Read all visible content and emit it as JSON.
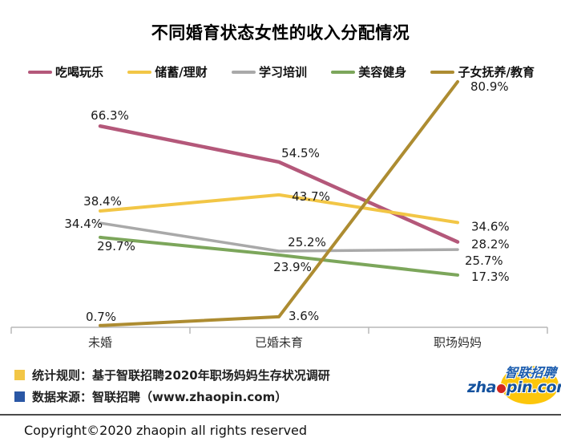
{
  "title": "不同婚育状态女性的收入分配情况",
  "chart_data": {
    "type": "line",
    "title": "不同婚育状态女性的收入分配情况",
    "categories": [
      "未婚",
      "已婚未育",
      "职场妈妈"
    ],
    "series": [
      {
        "name": "吃喝玩乐",
        "color": "#b4587a",
        "values": [
          66.3,
          54.5,
          28.2
        ],
        "labels": [
          "66.3%",
          "54.5%",
          "28.2%"
        ]
      },
      {
        "name": "储蓄/理财",
        "color": "#f2c646",
        "values": [
          38.4,
          43.7,
          34.6
        ],
        "labels": [
          "38.4%",
          "43.7%",
          "34.6%"
        ]
      },
      {
        "name": "学习培训",
        "color": "#a9a9a9",
        "values": [
          34.4,
          25.2,
          25.7
        ],
        "labels": [
          "34.4%",
          "25.2%",
          "25.7%"
        ]
      },
      {
        "name": "美容健身",
        "color": "#7ca65b",
        "values": [
          29.7,
          23.9,
          17.3
        ],
        "labels": [
          "29.7%",
          "23.9%",
          "17.3%"
        ]
      },
      {
        "name": "子女抚养/教育",
        "color": "#ad8c31",
        "values": [
          0.7,
          3.6,
          80.9
        ],
        "labels": [
          "0.7%",
          "3.6%",
          "80.9%"
        ]
      }
    ],
    "value_suffix": "%",
    "ylim": [
      0,
      85
    ],
    "grid": false,
    "legend_position": "top",
    "axis_color": "#b9b9b9",
    "label_color": "#1a1a1a",
    "category_color": "#333333"
  },
  "footer": {
    "notes": [
      {
        "bullet_color": "#f2c646",
        "text": "统计规则：基于智联招聘2020年职场妈妈生存状况调研"
      },
      {
        "bullet_color": "#2a57a5",
        "text": "数据来源：智联招聘（www.zhaopin.com）"
      }
    ],
    "copyright": "Copyright©2020  zhaopin all rights reserved",
    "logo": {
      "cn": "智联招聘",
      "en_left": "zha",
      "en_right": "pin.com"
    }
  }
}
